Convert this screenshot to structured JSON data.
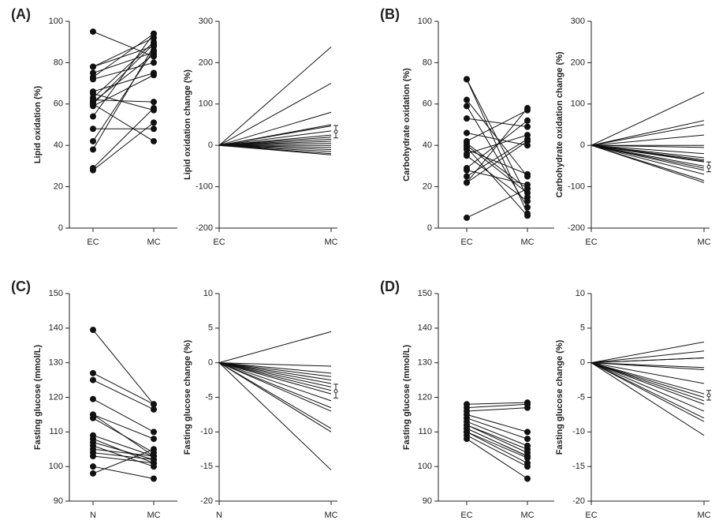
{
  "chart_data": [
    {
      "type": "paired",
      "panel_label": "(A)",
      "ylabel": "Lipid oxidation (%)",
      "categories": [
        "EC",
        "MC"
      ],
      "ylim": [
        0,
        100
      ],
      "yticks": [
        0,
        20,
        40,
        60,
        80,
        100
      ],
      "pairs": [
        [
          95,
          83
        ],
        [
          78,
          92
        ],
        [
          78,
          88
        ],
        [
          75,
          85
        ],
        [
          73,
          94
        ],
        [
          72,
          80
        ],
        [
          66,
          75
        ],
        [
          65,
          57
        ],
        [
          63,
          90
        ],
        [
          62,
          61
        ],
        [
          61,
          84
        ],
        [
          60,
          89
        ],
        [
          59,
          74
        ],
        [
          54,
          94
        ],
        [
          48,
          48
        ],
        [
          42,
          86
        ],
        [
          38,
          88
        ],
        [
          28,
          51
        ],
        [
          29,
          58
        ],
        [
          60,
          42
        ]
      ]
    },
    {
      "type": "change",
      "ylabel": "Lipid oxidation change (%)",
      "categories": [
        "EC",
        "MC"
      ],
      "ylim": [
        -200,
        300
      ],
      "yticks": [
        -200,
        -100,
        0,
        100,
        200,
        300
      ],
      "pairs": [
        [
          0,
          238
        ],
        [
          0,
          150
        ],
        [
          0,
          80
        ],
        [
          0,
          50
        ],
        [
          0,
          47
        ],
        [
          0,
          35
        ],
        [
          0,
          25
        ],
        [
          0,
          20
        ],
        [
          0,
          15
        ],
        [
          0,
          10
        ],
        [
          0,
          5
        ],
        [
          0,
          0
        ],
        [
          0,
          -5
        ],
        [
          0,
          -10
        ],
        [
          0,
          -15
        ],
        [
          0,
          -20
        ],
        [
          0,
          -23
        ]
      ],
      "mean": 33,
      "error": 15
    },
    {
      "type": "paired",
      "panel_label": "(B)",
      "ylabel": "Carbohydrate oxidation (%)",
      "categories": [
        "EC",
        "MC"
      ],
      "ylim": [
        0,
        100
      ],
      "yticks": [
        0,
        20,
        40,
        60,
        80,
        100
      ],
      "pairs": [
        [
          72,
          7
        ],
        [
          72,
          15
        ],
        [
          62,
          25
        ],
        [
          59,
          10
        ],
        [
          53,
          49
        ],
        [
          46,
          40
        ],
        [
          42,
          57
        ],
        [
          41,
          19
        ],
        [
          40,
          17
        ],
        [
          38,
          26
        ],
        [
          36,
          45
        ],
        [
          35,
          13
        ],
        [
          29,
          52
        ],
        [
          28,
          21
        ],
        [
          25,
          43
        ],
        [
          22,
          42
        ],
        [
          22,
          58
        ],
        [
          5,
          19
        ],
        [
          39,
          6
        ]
      ]
    },
    {
      "type": "change",
      "ylabel": "Carbohydrate oxidation change (%)",
      "categories": [
        "EC",
        "MC"
      ],
      "ylim": [
        -200,
        300
      ],
      "yticks": [
        -200,
        -100,
        0,
        100,
        200,
        300
      ],
      "pairs": [
        [
          0,
          128
        ],
        [
          0,
          60
        ],
        [
          0,
          50
        ],
        [
          0,
          25
        ],
        [
          0,
          0
        ],
        [
          0,
          -5
        ],
        [
          0,
          -20
        ],
        [
          0,
          -30
        ],
        [
          0,
          -35
        ],
        [
          0,
          -38
        ],
        [
          0,
          -40
        ],
        [
          0,
          -50
        ],
        [
          0,
          -55
        ],
        [
          0,
          -60
        ],
        [
          0,
          -70
        ],
        [
          0,
          -85
        ],
        [
          0,
          -90
        ]
      ],
      "mean": -52,
      "error": 12
    },
    {
      "type": "paired",
      "panel_label": "(C)",
      "ylabel": "Fasting glucose (mmol/L)",
      "categories": [
        "N",
        "MC"
      ],
      "ylim": [
        90,
        150
      ],
      "yticks": [
        90,
        100,
        110,
        120,
        130,
        140,
        150
      ],
      "pairs": [
        [
          139.5,
          118
        ],
        [
          127,
          118
        ],
        [
          125,
          116.5
        ],
        [
          119.5,
          110
        ],
        [
          115,
          108
        ],
        [
          114,
          104
        ],
        [
          109,
          103
        ],
        [
          108,
          101
        ],
        [
          107,
          102
        ],
        [
          106,
          100
        ],
        [
          105,
          103
        ],
        [
          104,
          102
        ],
        [
          103,
          101
        ],
        [
          100,
          96.5
        ],
        [
          98,
          105
        ],
        [
          115,
          103
        ]
      ]
    },
    {
      "type": "change",
      "ylabel": "Fasting glucose change (%)",
      "categories": [
        "N",
        "MC"
      ],
      "ylim": [
        -20,
        10
      ],
      "yticks": [
        -20,
        -15,
        -10,
        -5,
        0,
        5,
        10
      ],
      "pairs": [
        [
          0,
          4.5
        ],
        [
          0,
          -0.5
        ],
        [
          0,
          -1.5
        ],
        [
          0,
          -2
        ],
        [
          0,
          -2.5
        ],
        [
          0,
          -3
        ],
        [
          0,
          -3.5
        ],
        [
          0,
          -4
        ],
        [
          0,
          -4.5
        ],
        [
          0,
          -5.5
        ],
        [
          0,
          -6.5
        ],
        [
          0,
          -7
        ],
        [
          0,
          -9.5
        ],
        [
          0,
          -10
        ],
        [
          0,
          -15.5
        ]
      ],
      "mean": -4.1,
      "error": 1
    },
    {
      "type": "paired",
      "panel_label": "(D)",
      "ylabel": "Fasting glucose (mmol/L)",
      "categories": [
        "EC",
        "MC"
      ],
      "ylim": [
        90,
        150
      ],
      "yticks": [
        90,
        100,
        110,
        120,
        130,
        140,
        150
      ],
      "pairs": [
        [
          118,
          118.5
        ],
        [
          117,
          118
        ],
        [
          116,
          117
        ],
        [
          115,
          110
        ],
        [
          114,
          108
        ],
        [
          113,
          106
        ],
        [
          112,
          104
        ],
        [
          111,
          103
        ],
        [
          110,
          102.5
        ],
        [
          110,
          101
        ],
        [
          109,
          100
        ],
        [
          108,
          96.5
        ],
        [
          112,
          105
        ],
        [
          111,
          103
        ]
      ]
    },
    {
      "type": "change",
      "ylabel": "Fasting glucose change (%)",
      "categories": [
        "EC",
        "MC"
      ],
      "ylim": [
        -20,
        10
      ],
      "yticks": [
        -20,
        -15,
        -10,
        -5,
        0,
        5,
        10
      ],
      "pairs": [
        [
          0,
          3
        ],
        [
          0,
          1.7
        ],
        [
          0,
          0.7
        ],
        [
          0,
          0.7
        ],
        [
          0,
          -0.7
        ],
        [
          0,
          -1
        ],
        [
          0,
          -3
        ],
        [
          0,
          -4.5
        ],
        [
          0,
          -5
        ],
        [
          0,
          -5.5
        ],
        [
          0,
          -6
        ],
        [
          0,
          -7
        ],
        [
          0,
          -8
        ],
        [
          0,
          -8.5
        ],
        [
          0,
          -10.5
        ]
      ],
      "mean": -4.7,
      "error": 0.7
    }
  ]
}
